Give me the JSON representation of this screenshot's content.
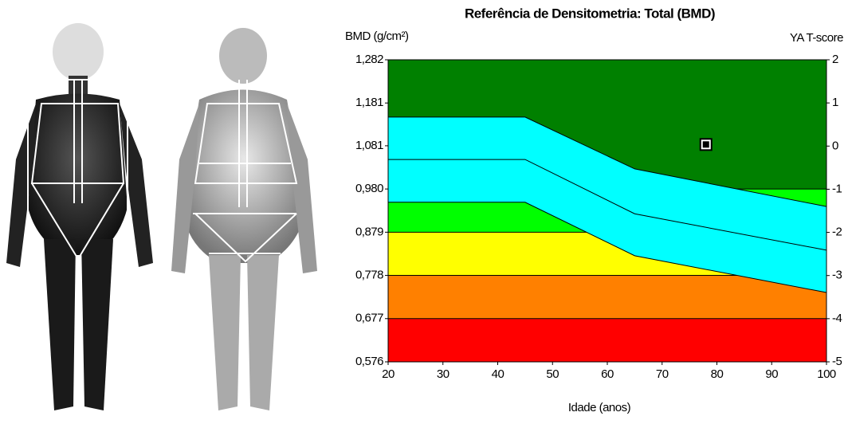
{
  "chart_data": {
    "type": "reference-bands",
    "title": "Referência de Densitometria: Total (BMD)",
    "y_label": "BMD (g/cm²)",
    "y2_label": "YA T-score",
    "x_label": "Idade (anos)",
    "xlim": [
      20,
      100
    ],
    "xticks": [
      20,
      30,
      40,
      50,
      60,
      70,
      80,
      90,
      100
    ],
    "ylim": [
      0.576,
      1.282
    ],
    "yticks": [
      {
        "value": 1.282,
        "label": "1,282"
      },
      {
        "value": 1.181,
        "label": "1,181"
      },
      {
        "value": 1.081,
        "label": "1,081"
      },
      {
        "value": 0.98,
        "label": "0,980"
      },
      {
        "value": 0.879,
        "label": "0,879"
      },
      {
        "value": 0.778,
        "label": "0,778"
      },
      {
        "value": 0.677,
        "label": "0,677"
      },
      {
        "value": 0.576,
        "label": "0,576"
      }
    ],
    "y2lim": [
      -5,
      2
    ],
    "y2ticks": [
      2,
      1,
      0,
      -1,
      -2,
      -3,
      -4,
      -5
    ],
    "bands": [
      {
        "from": 0.98,
        "to": 1.282,
        "color": "#008000"
      },
      {
        "from": 0.879,
        "to": 0.98,
        "color": "#00ff00"
      },
      {
        "from": 0.778,
        "to": 0.879,
        "color": "#ffff00"
      },
      {
        "from": 0.677,
        "to": 0.778,
        "color": "#ff8000"
      },
      {
        "from": 0.576,
        "to": 0.677,
        "color": "#ff0000"
      }
    ],
    "curve_fill": "#00ffff",
    "curves": [
      {
        "x": [
          20,
          45,
          65,
          100
        ],
        "values": [
          1.148,
          1.148,
          1.027,
          0.939
        ]
      },
      {
        "x": [
          20,
          45,
          65,
          100
        ],
        "values": [
          1.049,
          1.049,
          0.922,
          0.837
        ]
      },
      {
        "x": [
          20,
          45,
          65,
          100
        ],
        "values": [
          0.949,
          0.949,
          0.824,
          0.738
        ]
      }
    ],
    "patient": {
      "x": 78,
      "y": 1.084
    }
  }
}
